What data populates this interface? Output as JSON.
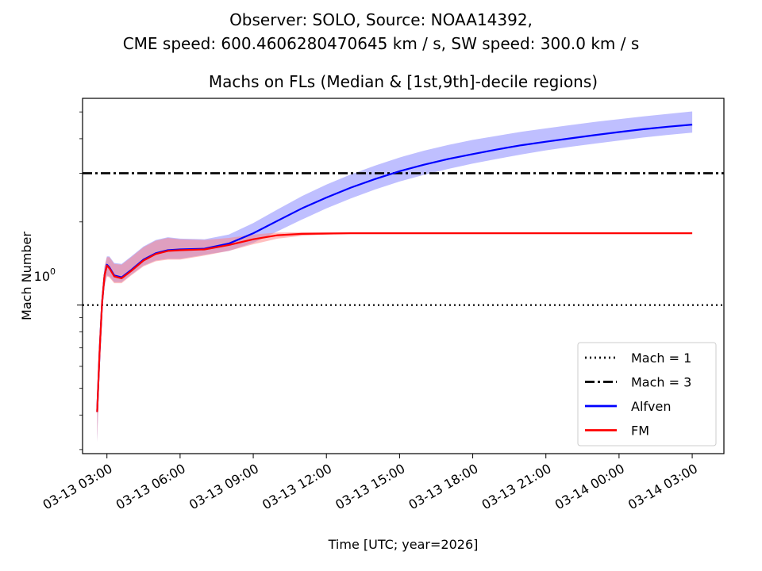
{
  "chart_data": {
    "type": "line",
    "suptitle_lines": [
      "Observer: SOLO, Source: NOAA14392,",
      "CME speed: 600.4606280470645 km / s, SW speed: 300.0 km / s"
    ],
    "title": "Machs on FLs (Median & [1st,9th]-decile regions)",
    "xlabel": "Time [UTC; year=2026]",
    "ylabel": "Mach Number",
    "yscale": "log",
    "ylim": [
      0.29,
      5.6
    ],
    "xlim_hours": [
      -1.0,
      25.3
    ],
    "x_ticks": [
      {
        "h": 0,
        "label": "03-13 03:00"
      },
      {
        "h": 3,
        "label": "03-13 06:00"
      },
      {
        "h": 6,
        "label": "03-13 09:00"
      },
      {
        "h": 9,
        "label": "03-13 12:00"
      },
      {
        "h": 12,
        "label": "03-13 15:00"
      },
      {
        "h": 15,
        "label": "03-13 18:00"
      },
      {
        "h": 18,
        "label": "03-13 21:00"
      },
      {
        "h": 21,
        "label": "03-14 00:00"
      },
      {
        "h": 24,
        "label": "03-14 03:00"
      }
    ],
    "y_tick_label": {
      "base": "10",
      "exp": "0"
    },
    "hlines": [
      {
        "name": "Mach = 1",
        "y": 1,
        "style": "dotted",
        "color": "#000000"
      },
      {
        "name": "Mach = 3",
        "y": 3,
        "style": "dashdot",
        "color": "#000000"
      }
    ],
    "series": [
      {
        "name": "Alfven",
        "color": "#0000ff",
        "band_color": "#8080ff",
        "x": [
          -0.4,
          -0.3,
          -0.2,
          -0.1,
          0.0,
          0.1,
          0.3,
          0.6,
          1.0,
          1.5,
          2.0,
          2.5,
          3.0,
          4.0,
          5.0,
          6.0,
          7.0,
          8.0,
          9.0,
          10.0,
          11.0,
          12.0,
          13.0,
          14.0,
          15.0,
          16.0,
          17.0,
          18.0,
          19.0,
          20.0,
          21.0,
          22.0,
          23.0,
          24.0
        ],
        "median": [
          0.41,
          0.68,
          1.02,
          1.28,
          1.4,
          1.37,
          1.28,
          1.26,
          1.34,
          1.46,
          1.54,
          1.58,
          1.59,
          1.6,
          1.67,
          1.82,
          2.02,
          2.24,
          2.45,
          2.66,
          2.86,
          3.05,
          3.22,
          3.38,
          3.52,
          3.66,
          3.79,
          3.9,
          4.01,
          4.12,
          4.23,
          4.33,
          4.42,
          4.5
        ],
        "p10": [
          0.32,
          0.6,
          0.93,
          1.17,
          1.28,
          1.27,
          1.21,
          1.21,
          1.29,
          1.39,
          1.45,
          1.47,
          1.47,
          1.52,
          1.57,
          1.68,
          1.85,
          2.04,
          2.24,
          2.43,
          2.62,
          2.8,
          2.96,
          3.11,
          3.25,
          3.38,
          3.51,
          3.63,
          3.74,
          3.84,
          3.94,
          4.04,
          4.13,
          4.21
        ],
        "p90": [
          0.44,
          0.75,
          1.1,
          1.38,
          1.5,
          1.5,
          1.42,
          1.41,
          1.5,
          1.63,
          1.72,
          1.76,
          1.74,
          1.73,
          1.8,
          1.98,
          2.22,
          2.48,
          2.73,
          2.97,
          3.2,
          3.42,
          3.62,
          3.8,
          3.96,
          4.1,
          4.24,
          4.36,
          4.48,
          4.6,
          4.71,
          4.82,
          4.92,
          5.02
        ]
      },
      {
        "name": "FM",
        "color": "#ff0000",
        "band_color": "#ff8080",
        "x": [
          -0.4,
          -0.3,
          -0.2,
          -0.1,
          0.0,
          0.1,
          0.3,
          0.6,
          1.0,
          1.5,
          2.0,
          2.5,
          3.0,
          4.0,
          5.0,
          6.0,
          7.0,
          8.0,
          9.0,
          10.0,
          11.0,
          12.0,
          13.0,
          14.0,
          15.0,
          16.0,
          17.0,
          18.0,
          19.0,
          20.0,
          21.0,
          22.0,
          23.0,
          24.0
        ],
        "median": [
          0.41,
          0.68,
          1.02,
          1.28,
          1.39,
          1.36,
          1.27,
          1.25,
          1.33,
          1.45,
          1.53,
          1.57,
          1.58,
          1.59,
          1.65,
          1.73,
          1.79,
          1.81,
          1.815,
          1.82,
          1.82,
          1.82,
          1.82,
          1.82,
          1.82,
          1.82,
          1.82,
          1.82,
          1.82,
          1.82,
          1.82,
          1.82,
          1.82,
          1.82
        ],
        "p10": [
          0.32,
          0.6,
          0.93,
          1.17,
          1.27,
          1.26,
          1.2,
          1.2,
          1.28,
          1.38,
          1.44,
          1.46,
          1.46,
          1.51,
          1.57,
          1.66,
          1.74,
          1.78,
          1.8,
          1.81,
          1.81,
          1.81,
          1.81,
          1.81,
          1.81,
          1.81,
          1.81,
          1.81,
          1.81,
          1.81,
          1.81,
          1.81,
          1.81,
          1.81
        ],
        "p90": [
          0.44,
          0.75,
          1.1,
          1.38,
          1.49,
          1.49,
          1.41,
          1.4,
          1.49,
          1.62,
          1.71,
          1.75,
          1.73,
          1.72,
          1.75,
          1.8,
          1.83,
          1.835,
          1.835,
          1.835,
          1.835,
          1.835,
          1.835,
          1.835,
          1.835,
          1.835,
          1.835,
          1.835,
          1.835,
          1.835,
          1.835,
          1.835,
          1.835,
          1.835
        ]
      }
    ],
    "legend": {
      "placement": "lower right",
      "entries": [
        {
          "label": "Mach = 1",
          "style": "dotted",
          "color": "#000000"
        },
        {
          "label": "Mach = 3",
          "style": "dashdot",
          "color": "#000000"
        },
        {
          "label": "Alfven",
          "style": "solid",
          "color": "#0000ff"
        },
        {
          "label": "FM",
          "style": "solid",
          "color": "#ff0000"
        }
      ]
    }
  }
}
